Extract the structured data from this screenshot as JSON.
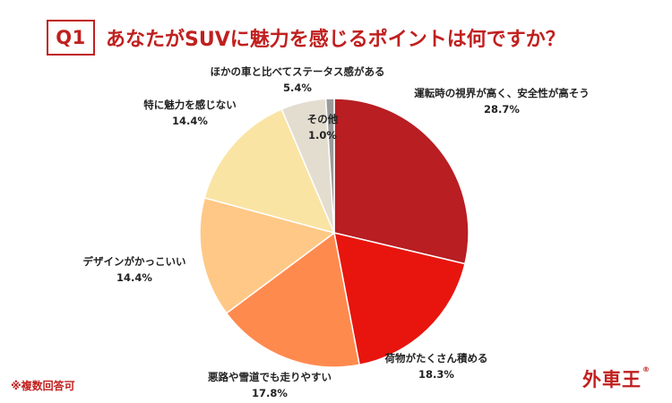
{
  "header": {
    "badge": "Q1",
    "title": "あなたがSUVに魅力を感じるポイントは何ですか？"
  },
  "footnote": "※複数回答可",
  "brand": {
    "name": "外車王",
    "mark": "®"
  },
  "colors": {
    "accent": "#c0201f"
  },
  "chart_data": {
    "type": "pie",
    "title": "あなたがSUVに魅力を感じるポイントは何ですか？",
    "start": "12 o'clock, clockwise",
    "slices": [
      {
        "label": "運転時の視界が高く、安全性が高そう",
        "value": 28.7,
        "value_text": "28.7%",
        "color": "#b81e22"
      },
      {
        "label": "荷物がたくさん積める",
        "value": 18.3,
        "value_text": "18.3%",
        "color": "#e8150e"
      },
      {
        "label": "悪路や雪道でも走りやすい",
        "value": 17.8,
        "value_text": "17.8%",
        "color": "#ff8a4e"
      },
      {
        "label": "デザインがかっこいい",
        "value": 14.4,
        "value_text": "14.4%",
        "color": "#ffc886"
      },
      {
        "label": "特に魅力を感じない",
        "value": 14.4,
        "value_text": "14.4%",
        "color": "#fae4a4"
      },
      {
        "label": "ほかの車と比べてステータス感がある",
        "value": 5.4,
        "value_text": "5.4%",
        "color": "#e3ddd0"
      },
      {
        "label": "その他",
        "value": 1.0,
        "value_text": "1.0%",
        "color": "#9a9a9a"
      }
    ]
  }
}
